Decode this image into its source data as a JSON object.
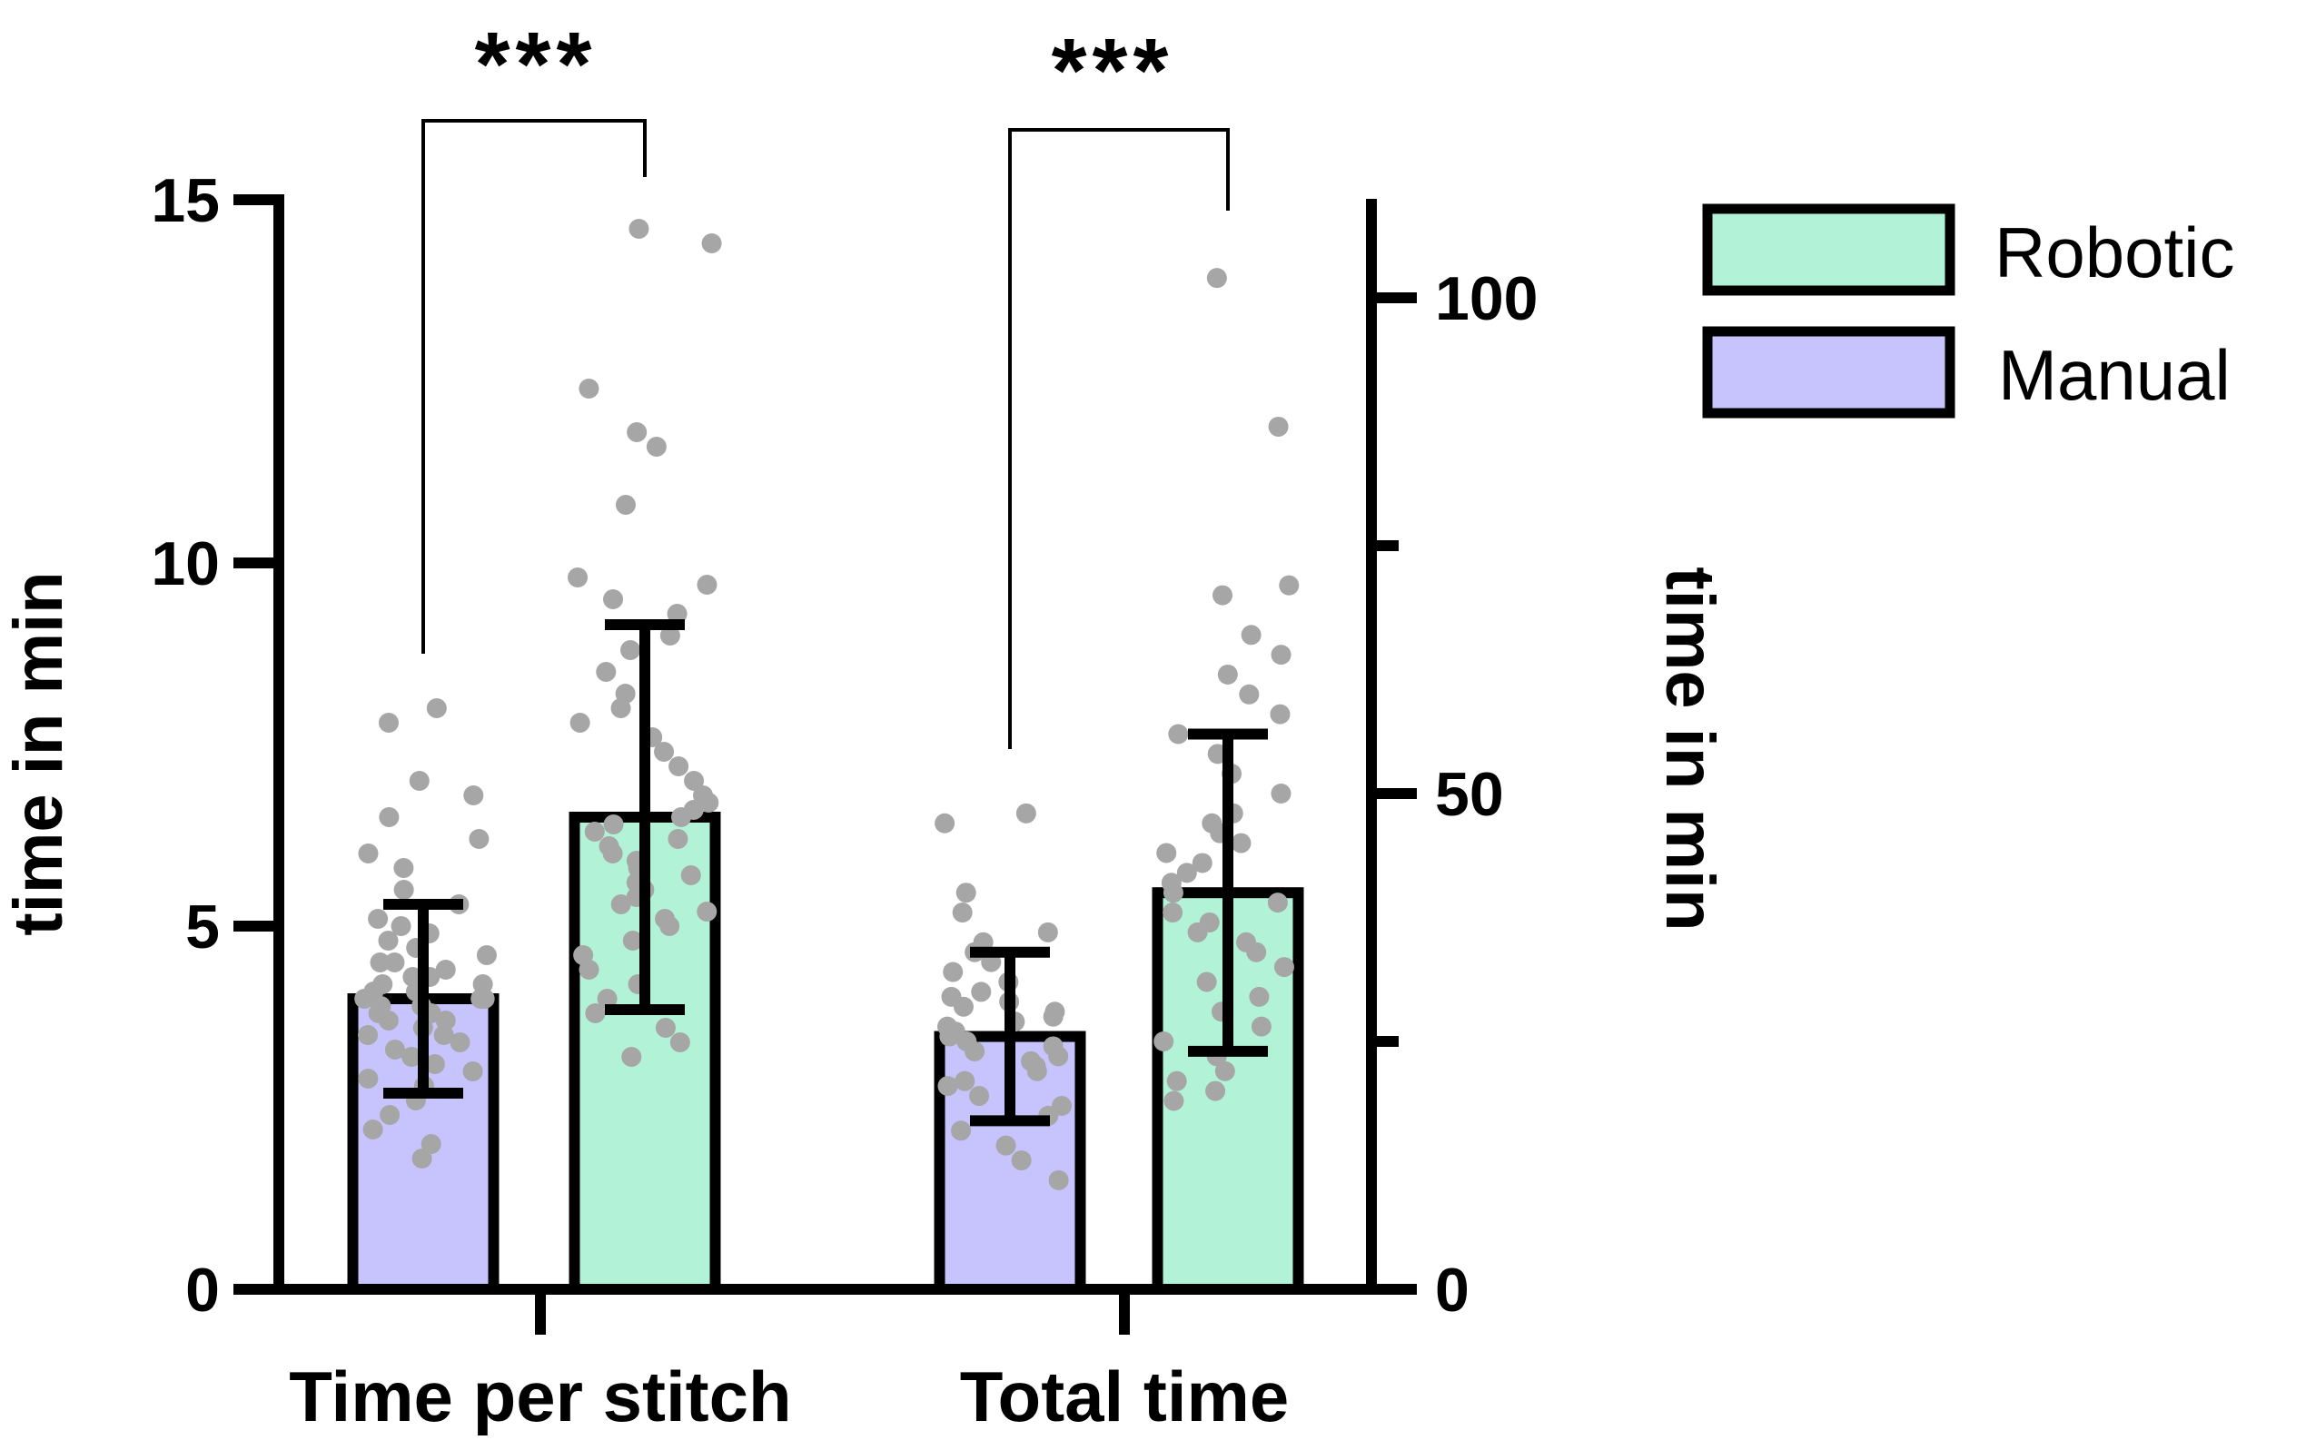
{
  "chart_data": {
    "type": "bar",
    "categories": [
      "Time per stitch",
      "Total time"
    ],
    "left_axis": {
      "label": "time in min",
      "ylim": [
        0,
        15
      ],
      "ticks": [
        0,
        5,
        10,
        15
      ],
      "tick_labels": [
        "0",
        "5",
        "10",
        "15"
      ]
    },
    "right_axis": {
      "label": "time in min",
      "ylim": [
        0,
        110
      ],
      "ticks": [
        0,
        50,
        100
      ],
      "tick_labels": [
        "0",
        "50",
        "100"
      ],
      "minor_ticks": [
        25,
        75
      ]
    },
    "series": [
      {
        "name": "Manual",
        "color": "#c6c3fd",
        "values": [
          4.0,
          25.5
        ],
        "sd": [
          1.3,
          8.5
        ],
        "axis": [
          "left",
          "right"
        ]
      },
      {
        "name": "Robotic",
        "color": "#b2f3d8",
        "values": [
          6.5,
          40.0
        ],
        "sd": [
          2.65,
          16.0
        ],
        "axis": [
          "left",
          "right"
        ]
      }
    ],
    "points": {
      "manual_stitch": [
        1.8,
        2.0,
        2.2,
        2.4,
        2.6,
        2.8,
        2.9,
        3.0,
        3.1,
        3.2,
        3.3,
        3.4,
        3.5,
        3.5,
        3.6,
        3.7,
        3.7,
        3.8,
        3.8,
        3.9,
        3.9,
        4.0,
        4.0,
        4.0,
        4.1,
        4.1,
        4.2,
        4.2,
        4.3,
        4.3,
        4.4,
        4.5,
        4.5,
        4.6,
        4.7,
        4.8,
        4.9,
        5.0,
        5.1,
        5.3,
        5.5,
        5.8,
        6.0,
        6.2,
        6.5,
        6.8,
        7.0,
        7.8,
        8.0
      ],
      "robotic_stitch": [
        3.2,
        3.4,
        3.6,
        3.8,
        4.0,
        4.2,
        4.4,
        4.6,
        4.8,
        5.0,
        5.1,
        5.2,
        5.3,
        5.4,
        5.5,
        5.6,
        5.7,
        5.8,
        5.9,
        6.0,
        6.1,
        6.2,
        6.3,
        6.4,
        6.5,
        6.6,
        6.7,
        6.8,
        7.0,
        7.2,
        7.4,
        7.6,
        7.8,
        8.0,
        8.2,
        8.5,
        8.8,
        9.0,
        9.3,
        9.5,
        9.7,
        9.8,
        10.8,
        11.6,
        11.8,
        12.4,
        14.4,
        14.6
      ],
      "manual_total": [
        11.0,
        13.0,
        14.5,
        16.0,
        17.5,
        18.5,
        19.5,
        20.5,
        21.0,
        22.0,
        22.5,
        23.0,
        23.5,
        24.0,
        24.5,
        25.0,
        25.5,
        26.0,
        26.5,
        27.0,
        27.5,
        28.0,
        28.5,
        29.0,
        29.5,
        30.0,
        31.0,
        32.0,
        33.0,
        34.0,
        35.0,
        36.0,
        38.0,
        40.0,
        47.0,
        48.0
      ],
      "robotic_total": [
        19.0,
        20.0,
        21.0,
        22.0,
        23.5,
        25.0,
        26.5,
        28.0,
        29.5,
        31.0,
        32.5,
        34.0,
        35.0,
        36.0,
        37.0,
        38.0,
        39.0,
        40.0,
        41.0,
        42.0,
        43.0,
        44.0,
        45.0,
        46.0,
        47.0,
        48.0,
        50.0,
        52.0,
        54.0,
        56.0,
        58.0,
        60.0,
        62.0,
        64.0,
        66.0,
        70.0,
        71.0,
        87.0,
        102.0
      ]
    },
    "significance": [
      {
        "category": "Time per stitch",
        "label": "***"
      },
      {
        "category": "Total time",
        "label": "***"
      }
    ],
    "legend": {
      "position": "top-right",
      "entries": [
        "Robotic",
        "Manual"
      ]
    }
  }
}
